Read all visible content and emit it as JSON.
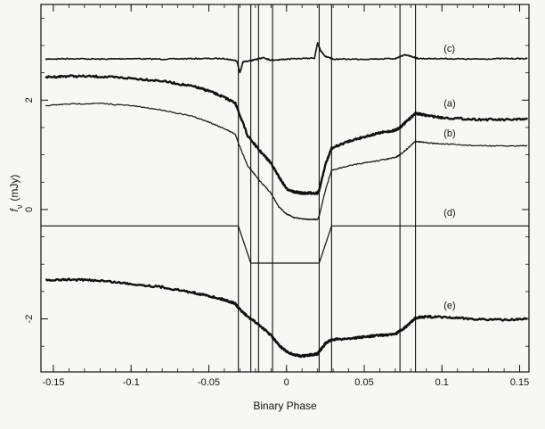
{
  "chart_data": {
    "type": "line",
    "title": "",
    "xlabel": "Binary Phase",
    "ylabel": "f_ν (mJy)",
    "ylabel_main": "f",
    "ylabel_sub": "ν",
    "ylabel_unit": "(mJy)",
    "xlim": [
      -0.158,
      0.156
    ],
    "ylim": [
      -2.97,
      3.75
    ],
    "x_ticks": [
      -0.15,
      -0.1,
      -0.05,
      0,
      0.05,
      0.1,
      0.15
    ],
    "x_tick_labels": [
      "-0.15",
      "-0.1",
      "-0.05",
      "0",
      "0.05",
      "0.1",
      "0.15"
    ],
    "y_ticks": [
      -2,
      0,
      2
    ],
    "y_tick_labels": [
      "-2",
      "0",
      "2"
    ],
    "grid": false,
    "legend": "none",
    "curve_color": "#111111",
    "vertical_lines_x": [
      -0.031,
      -0.023,
      -0.018,
      -0.009,
      0.021,
      0.029,
      0.073,
      0.083
    ],
    "series": [
      {
        "label": "(c)",
        "label_x": 0.1,
        "label_y": 2.95,
        "stroke": 1.6,
        "x": [
          -0.155,
          -0.14,
          -0.12,
          -0.1,
          -0.08,
          -0.06,
          -0.04,
          -0.032,
          -0.03,
          -0.028,
          -0.02,
          -0.015,
          -0.01,
          0,
          0.018,
          0.02,
          0.022,
          0.025,
          0.03,
          0.05,
          0.07,
          0.076,
          0.08,
          0.085,
          0.1,
          0.12,
          0.14,
          0.155
        ],
        "y": [
          2.75,
          2.76,
          2.75,
          2.76,
          2.75,
          2.76,
          2.76,
          2.72,
          2.5,
          2.7,
          2.74,
          2.78,
          2.73,
          2.75,
          2.77,
          3.05,
          2.9,
          2.8,
          2.75,
          2.75,
          2.76,
          2.83,
          2.8,
          2.76,
          2.76,
          2.75,
          2.76,
          2.76
        ]
      },
      {
        "label": "(a)",
        "label_x": 0.1,
        "label_y": 1.95,
        "stroke": 2.4,
        "x": [
          -0.155,
          -0.14,
          -0.12,
          -0.1,
          -0.08,
          -0.06,
          -0.05,
          -0.04,
          -0.033,
          -0.031,
          -0.025,
          -0.018,
          -0.01,
          -0.005,
          0,
          0.005,
          0.01,
          0.015,
          0.02,
          0.021,
          0.025,
          0.029,
          0.04,
          0.05,
          0.06,
          0.07,
          0.073,
          0.078,
          0.083,
          0.09,
          0.1,
          0.12,
          0.14,
          0.155
        ],
        "y": [
          2.42,
          2.44,
          2.43,
          2.4,
          2.35,
          2.25,
          2.17,
          2.05,
          1.95,
          1.8,
          1.35,
          1.1,
          0.85,
          0.6,
          0.38,
          0.32,
          0.3,
          0.3,
          0.3,
          0.35,
          0.82,
          1.12,
          1.25,
          1.33,
          1.4,
          1.45,
          1.5,
          1.63,
          1.76,
          1.72,
          1.68,
          1.65,
          1.64,
          1.65
        ]
      },
      {
        "label": "(b)",
        "label_x": 0.1,
        "label_y": 1.4,
        "stroke": 1.2,
        "x": [
          -0.155,
          -0.14,
          -0.12,
          -0.1,
          -0.08,
          -0.06,
          -0.05,
          -0.04,
          -0.033,
          -0.031,
          -0.025,
          -0.018,
          -0.01,
          -0.005,
          0,
          0.005,
          0.01,
          0.015,
          0.02,
          0.021,
          0.025,
          0.029,
          0.04,
          0.05,
          0.06,
          0.07,
          0.073,
          0.078,
          0.083,
          0.09,
          0.1,
          0.12,
          0.14,
          0.155
        ],
        "y": [
          1.9,
          1.93,
          1.94,
          1.9,
          1.82,
          1.7,
          1.6,
          1.48,
          1.38,
          1.22,
          0.8,
          0.55,
          0.3,
          0.05,
          -0.08,
          -0.15,
          -0.17,
          -0.18,
          -0.18,
          -0.12,
          0.35,
          0.72,
          0.8,
          0.85,
          0.9,
          0.95,
          1.0,
          1.12,
          1.25,
          1.22,
          1.2,
          1.17,
          1.16,
          1.17
        ]
      },
      {
        "label": "(d)",
        "label_x": 0.1,
        "label_y": -0.05,
        "stroke": 1.2,
        "x": [
          -0.158,
          -0.031,
          -0.023,
          0.021,
          0.029,
          0.156
        ],
        "y": [
          -0.3,
          -0.3,
          -0.98,
          -0.98,
          -0.3,
          -0.3
        ]
      },
      {
        "label": "(e)",
        "label_x": 0.1,
        "label_y": -1.75,
        "stroke": 2.4,
        "x": [
          -0.155,
          -0.14,
          -0.12,
          -0.1,
          -0.08,
          -0.06,
          -0.05,
          -0.04,
          -0.033,
          -0.031,
          -0.025,
          -0.018,
          -0.01,
          -0.005,
          0,
          0.005,
          0.01,
          0.015,
          0.02,
          0.021,
          0.025,
          0.029,
          0.04,
          0.05,
          0.06,
          0.07,
          0.073,
          0.078,
          0.083,
          0.09,
          0.1,
          0.12,
          0.14,
          0.155
        ],
        "y": [
          -1.3,
          -1.28,
          -1.3,
          -1.36,
          -1.42,
          -1.52,
          -1.58,
          -1.65,
          -1.72,
          -1.8,
          -1.96,
          -2.1,
          -2.3,
          -2.48,
          -2.6,
          -2.66,
          -2.68,
          -2.66,
          -2.64,
          -2.6,
          -2.45,
          -2.38,
          -2.36,
          -2.33,
          -2.3,
          -2.28,
          -2.22,
          -2.12,
          -1.98,
          -1.96,
          -1.97,
          -2.0,
          -2.02,
          -2.0
        ]
      }
    ]
  }
}
